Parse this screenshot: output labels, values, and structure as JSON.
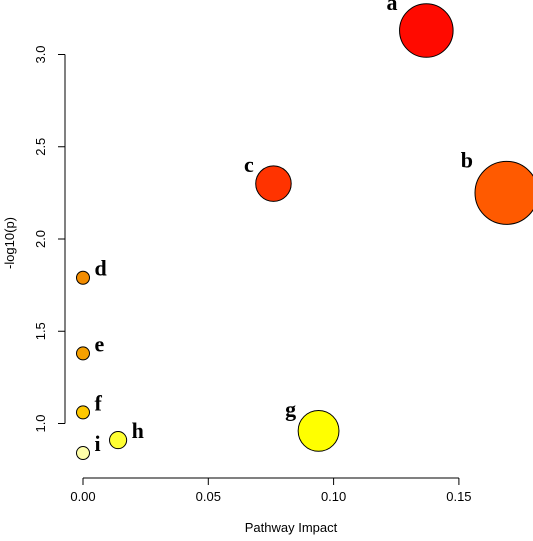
{
  "chart_data": {
    "type": "scatter",
    "xlabel": "Pathway Impact",
    "ylabel": "-log10(p)",
    "xlim": [
      -0.004,
      0.175
    ],
    "ylim": [
      0.77,
      3.23
    ],
    "x_ticks": [
      0.0,
      0.05,
      0.1,
      0.15
    ],
    "x_tick_labels": [
      "0.00",
      "0.05",
      "0.10",
      "0.15"
    ],
    "y_ticks": [
      1.0,
      1.5,
      2.0,
      2.5,
      3.0
    ],
    "y_tick_labels": [
      "1.0",
      "1.5",
      "2.0",
      "2.5",
      "3.0"
    ],
    "grid": false,
    "points": [
      {
        "label": "a",
        "x": 0.137,
        "y": 3.13,
        "size": 0.137,
        "color": "#ff0a00"
      },
      {
        "label": "b",
        "x": 0.169,
        "y": 2.25,
        "size": 0.169,
        "color": "#ff5a00"
      },
      {
        "label": "c",
        "x": 0.076,
        "y": 2.3,
        "size": 0.076,
        "color": "#ff3300"
      },
      {
        "label": "d",
        "x": 0.0,
        "y": 1.79,
        "size": 0.0,
        "color": "#f28c00"
      },
      {
        "label": "e",
        "x": 0.0,
        "y": 1.38,
        "size": 0.0,
        "color": "#f5a000"
      },
      {
        "label": "f",
        "x": 0.0,
        "y": 1.06,
        "size": 0.0,
        "color": "#ffc800"
      },
      {
        "label": "g",
        "x": 0.094,
        "y": 0.96,
        "size": 0.094,
        "color": "#ffff00"
      },
      {
        "label": "h",
        "x": 0.014,
        "y": 0.91,
        "size": 0.014,
        "color": "#ffff33"
      },
      {
        "label": "i",
        "x": 0.0,
        "y": 0.84,
        "size": 0.0,
        "color": "#ffffaa"
      }
    ]
  }
}
